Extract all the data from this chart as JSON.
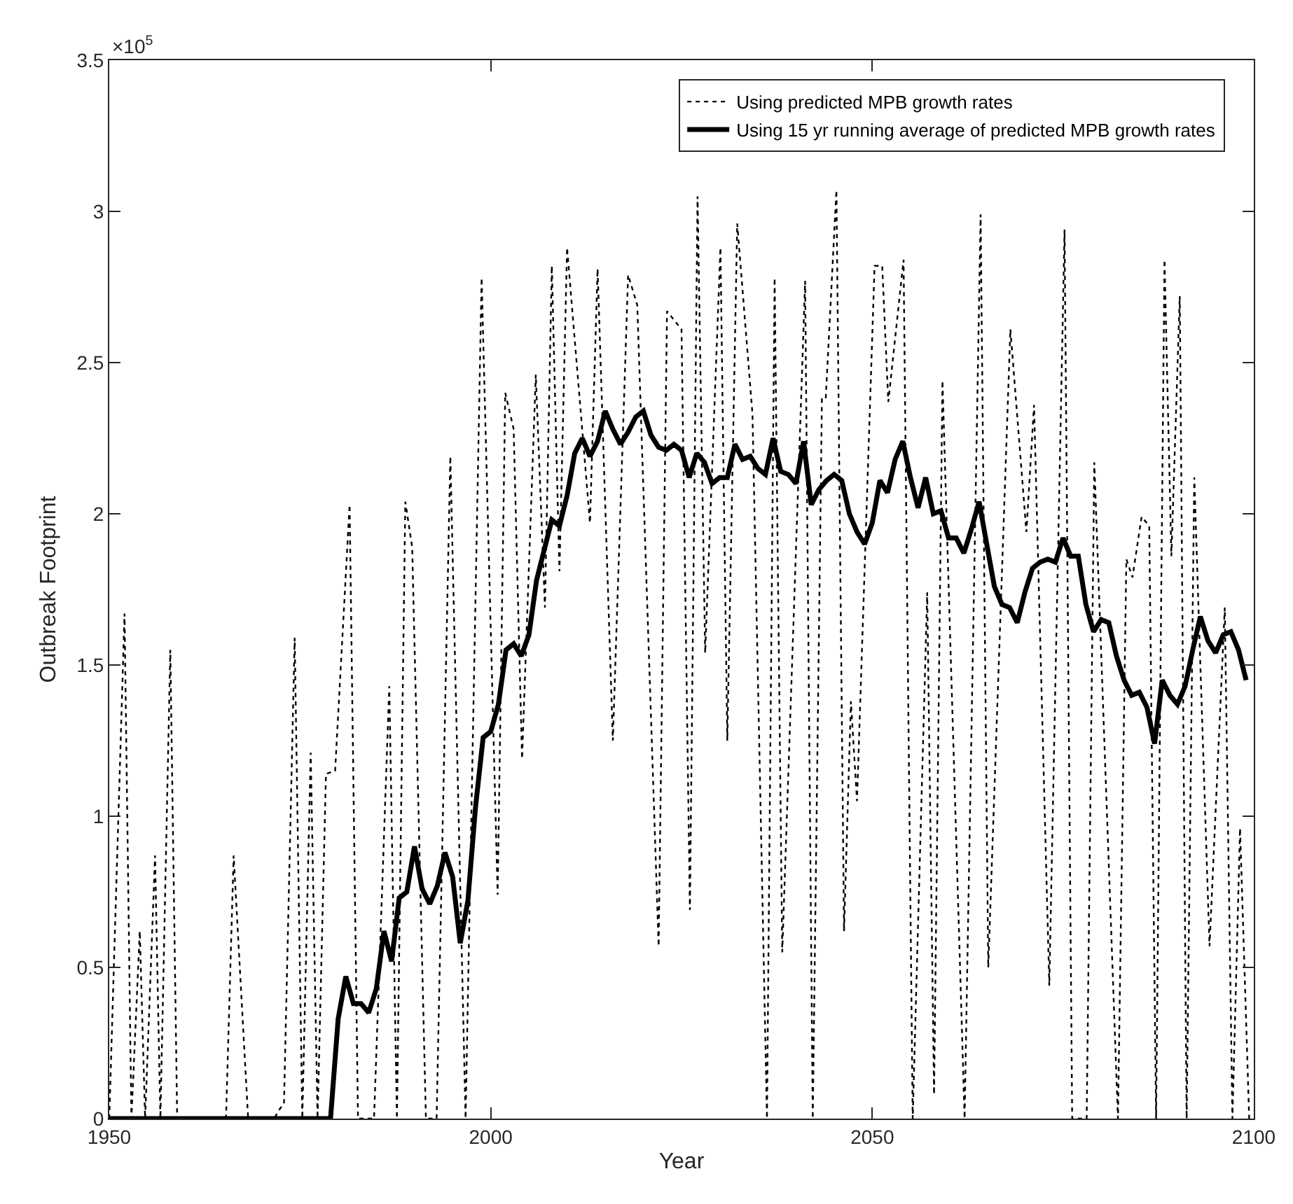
{
  "chart_data": {
    "type": "line",
    "xlabel": "Year",
    "ylabel": "Outbreak Footprint",
    "annotations": [
      "×10$^{5}$"
    ],
    "xlim": [
      1950,
      2100
    ],
    "xticks": [
      1950,
      2000,
      2050,
      2100
    ],
    "ylim": [
      0,
      3.5
    ],
    "yticks": [
      0,
      0.5,
      1,
      1.5,
      2,
      2.5,
      3,
      3.5
    ],
    "grid": false,
    "legend": "top right",
    "series": [
      {
        "name": "Using predicted MPB growth rates",
        "color": "#000000",
        "line_style": "dotted",
        "x": [
          1950,
          1952.0,
          1952.9,
          1954.0,
          1954.7,
          1956.0,
          1956.7,
          1958.0,
          1958.9,
          1965.3,
          1966.3,
          1968.2,
          1971.6,
          1972.3,
          1972.9,
          1974.3,
          1975.3,
          1976.4,
          1977.3,
          1978.4,
          1979.6,
          1981.5,
          1982.6,
          1984.7,
          1986.7,
          1987.7,
          1988.8,
          1989.7,
          1991.5,
          1992.9,
          1994.7,
          1996.7,
          1998.8,
          2000.9,
          2001.9,
          2003.0,
          2004.1,
          2005.9,
          2007.1,
          2008.0,
          2009.0,
          2010.0,
          2013.0,
          2014.0,
          2016.0,
          2018.0,
          2019.2,
          2022.0,
          2023.1,
          2025.0,
          2026.1,
          2027.1,
          2028.1,
          2030.1,
          2031.0,
          2032.3,
          2034.3,
          2036.2,
          2037.2,
          2038.2,
          2041.2,
          2042.2,
          2043.4,
          2043.9,
          2045.3,
          2046.3,
          2047.2,
          2048.0,
          2050.3,
          2051.3,
          2052.1,
          2054.1,
          2055.3,
          2057.2,
          2058.1,
          2059.2,
          2062.1,
          2064.2,
          2065.2,
          2068.1,
          2070.2,
          2071.2,
          2073.2,
          2075.2,
          2076.2,
          2078.1,
          2079.1,
          2082.2,
          2083.3,
          2084.1,
          2085.3,
          2086.3,
          2087.2,
          2088.3,
          2089.2,
          2090.3,
          2091.2,
          2092.2,
          2094.2,
          2096.2,
          2097.2,
          2098.2,
          2099.4
        ],
        "values": [
          0,
          1.67,
          0,
          0.62,
          0,
          0.87,
          0,
          1.55,
          0,
          0,
          0.87,
          0,
          0,
          0.03,
          0.05,
          1.59,
          0,
          1.21,
          0,
          1.14,
          1.15,
          2.03,
          0,
          0,
          1.43,
          0,
          2.04,
          1.89,
          0,
          0,
          2.19,
          0,
          2.78,
          0.74,
          2.4,
          2.28,
          1.19,
          2.46,
          1.69,
          2.82,
          1.81,
          2.88,
          1.97,
          2.81,
          1.25,
          2.79,
          2.69,
          0.57,
          2.67,
          2.61,
          0.69,
          3.05,
          1.54,
          2.88,
          1.25,
          2.96,
          2.33,
          0,
          2.78,
          0.55,
          2.77,
          0,
          2.38,
          2.38,
          3.07,
          0.62,
          1.38,
          1.05,
          2.82,
          2.82,
          2.37,
          2.84,
          0,
          1.74,
          0.08,
          2.44,
          0,
          2.99,
          0.5,
          2.61,
          1.94,
          2.36,
          0.44,
          2.94,
          0,
          0,
          2.17,
          0,
          1.85,
          1.79,
          1.99,
          1.96,
          0,
          2.84,
          1.86,
          2.72,
          0,
          2.12,
          0.57,
          1.69,
          0,
          0.96,
          0
        ]
      },
      {
        "name": "Using 15 yr running average of predicted MPB growth rates",
        "color": "#000000",
        "line_style": "solid",
        "x": [
          1950,
          1979,
          1980,
          1981,
          1982,
          1983,
          1984,
          1985,
          1986,
          1987,
          1988,
          1989,
          1990,
          1991,
          1992,
          1993,
          1994,
          1995,
          1996,
          1997,
          1998,
          1999,
          2000,
          2001,
          2002,
          2003,
          2004,
          2005,
          2006,
          2007,
          2008,
          2009,
          2010,
          2011,
          2012,
          2013,
          2014,
          2015,
          2016,
          2017,
          2018,
          2019,
          2020,
          2021,
          2022,
          2023,
          2024,
          2025,
          2026,
          2027,
          2028,
          2029,
          2030,
          2031,
          2032,
          2033,
          2034,
          2035,
          2036,
          2037,
          2038,
          2039,
          2040,
          2041,
          2042,
          2043,
          2044,
          2045,
          2046,
          2047,
          2048,
          2049,
          2050,
          2051,
          2052,
          2053,
          2054,
          2055,
          2056,
          2057,
          2058,
          2059,
          2060,
          2061,
          2062,
          2063,
          2064,
          2065,
          2066,
          2067,
          2068,
          2069,
          2070,
          2071,
          2072,
          2073,
          2074,
          2075,
          2076,
          2077,
          2078,
          2079,
          2080,
          2081,
          2082,
          2083,
          2084,
          2085,
          2086,
          2087,
          2088,
          2089,
          2090,
          2091,
          2092,
          2093,
          2094,
          2095,
          2096,
          2097,
          2098,
          2099
        ],
        "values": [
          0,
          0,
          0.33,
          0.47,
          0.38,
          0.38,
          0.35,
          0.43,
          0.62,
          0.52,
          0.73,
          0.75,
          0.9,
          0.76,
          0.71,
          0.77,
          0.88,
          0.8,
          0.58,
          0.72,
          1.03,
          1.26,
          1.28,
          1.37,
          1.55,
          1.57,
          1.53,
          1.6,
          1.78,
          1.88,
          1.98,
          1.96,
          2.06,
          2.2,
          2.25,
          2.19,
          2.24,
          2.34,
          2.28,
          2.23,
          2.27,
          2.32,
          2.34,
          2.26,
          2.22,
          2.21,
          2.23,
          2.21,
          2.12,
          2.2,
          2.17,
          2.1,
          2.12,
          2.12,
          2.23,
          2.18,
          2.19,
          2.15,
          2.13,
          2.25,
          2.14,
          2.13,
          2.1,
          2.24,
          2.03,
          2.08,
          2.11,
          2.13,
          2.11,
          2.0,
          1.94,
          1.9,
          1.97,
          2.11,
          2.07,
          2.18,
          2.24,
          2.12,
          2.02,
          2.12,
          2.0,
          2.01,
          1.92,
          1.92,
          1.87,
          1.95,
          2.04,
          1.9,
          1.76,
          1.7,
          1.69,
          1.64,
          1.74,
          1.82,
          1.84,
          1.85,
          1.84,
          1.92,
          1.86,
          1.86,
          1.7,
          1.61,
          1.65,
          1.64,
          1.53,
          1.45,
          1.4,
          1.41,
          1.36,
          1.24,
          1.45,
          1.4,
          1.37,
          1.43,
          1.55,
          1.66,
          1.58,
          1.54,
          1.6,
          1.61,
          1.55,
          1.45
        ]
      }
    ]
  }
}
